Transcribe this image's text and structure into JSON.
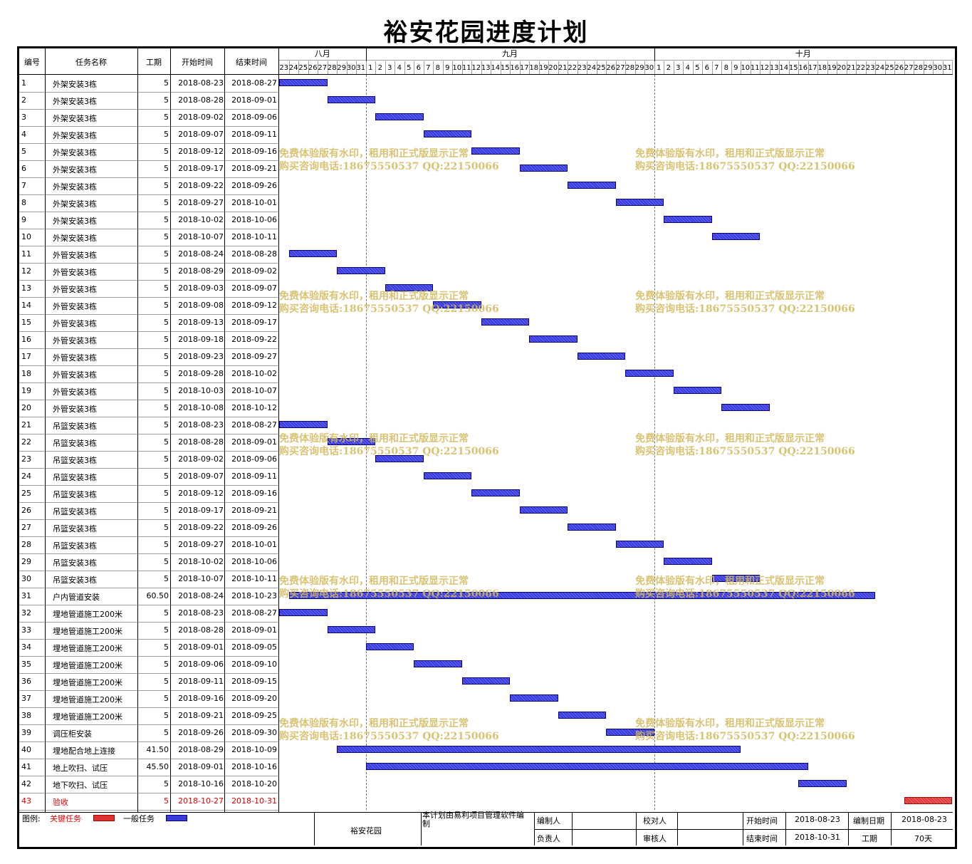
{
  "title": "裕安花园进度计划",
  "columns": {
    "id": "编号",
    "name": "任务名称",
    "duration": "工期",
    "start": "开始时间",
    "end": "结束时间"
  },
  "months": [
    {
      "label": "八月",
      "start_day": 0,
      "days": 9
    },
    {
      "label": "九月",
      "start_day": 9,
      "days": 30
    },
    {
      "label": "十月",
      "start_day": 39,
      "days": 31
    }
  ],
  "day_labels": [
    "23",
    "24",
    "25",
    "26",
    "27",
    "28",
    "29",
    "30",
    "31",
    "1",
    "2",
    "3",
    "4",
    "5",
    "6",
    "7",
    "8",
    "9",
    "10",
    "11",
    "12",
    "13",
    "14",
    "15",
    "16",
    "17",
    "18",
    "19",
    "20",
    "21",
    "22",
    "23",
    "24",
    "25",
    "26",
    "27",
    "28",
    "29",
    "30",
    "1",
    "2",
    "3",
    "4",
    "5",
    "6",
    "7",
    "8",
    "9",
    "10",
    "11",
    "12",
    "13",
    "14",
    "15",
    "16",
    "17",
    "18",
    "19",
    "20",
    "21",
    "22",
    "23",
    "24",
    "25",
    "26",
    "27",
    "28",
    "29",
    "30",
    "31"
  ],
  "chart_data": {
    "type": "gantt",
    "x_range": [
      "2018-08-23",
      "2018-10-31"
    ],
    "tasks": [
      {
        "id": "1",
        "name": "外架安装3栋",
        "duration": "5",
        "start": "2018-08-23",
        "end": "2018-08-27",
        "critical": false
      },
      {
        "id": "2",
        "name": "外架安装3栋",
        "duration": "5",
        "start": "2018-08-28",
        "end": "2018-09-01",
        "critical": false
      },
      {
        "id": "3",
        "name": "外架安装3栋",
        "duration": "5",
        "start": "2018-09-02",
        "end": "2018-09-06",
        "critical": false
      },
      {
        "id": "4",
        "name": "外架安装3栋",
        "duration": "5",
        "start": "2018-09-07",
        "end": "2018-09-11",
        "critical": false
      },
      {
        "id": "5",
        "name": "外架安装3栋",
        "duration": "5",
        "start": "2018-09-12",
        "end": "2018-09-16",
        "critical": false
      },
      {
        "id": "6",
        "name": "外架安装3栋",
        "duration": "5",
        "start": "2018-09-17",
        "end": "2018-09-21",
        "critical": false
      },
      {
        "id": "7",
        "name": "外架安装3栋",
        "duration": "5",
        "start": "2018-09-22",
        "end": "2018-09-26",
        "critical": false
      },
      {
        "id": "8",
        "name": "外架安装3栋",
        "duration": "5",
        "start": "2018-09-27",
        "end": "2018-10-01",
        "critical": false
      },
      {
        "id": "9",
        "name": "外架安装3栋",
        "duration": "5",
        "start": "2018-10-02",
        "end": "2018-10-06",
        "critical": false
      },
      {
        "id": "10",
        "name": "外架安装3栋",
        "duration": "5",
        "start": "2018-10-07",
        "end": "2018-10-11",
        "critical": false
      },
      {
        "id": "11",
        "name": "外管安装3栋",
        "duration": "5",
        "start": "2018-08-24",
        "end": "2018-08-28",
        "critical": false
      },
      {
        "id": "12",
        "name": "外管安装3栋",
        "duration": "5",
        "start": "2018-08-29",
        "end": "2018-09-02",
        "critical": false
      },
      {
        "id": "13",
        "name": "外管安装3栋",
        "duration": "5",
        "start": "2018-09-03",
        "end": "2018-09-07",
        "critical": false
      },
      {
        "id": "14",
        "name": "外管安装3栋",
        "duration": "5",
        "start": "2018-09-08",
        "end": "2018-09-12",
        "critical": false
      },
      {
        "id": "15",
        "name": "外管安装3栋",
        "duration": "5",
        "start": "2018-09-13",
        "end": "2018-09-17",
        "critical": false
      },
      {
        "id": "16",
        "name": "外管安装3栋",
        "duration": "5",
        "start": "2018-09-18",
        "end": "2018-09-22",
        "critical": false
      },
      {
        "id": "17",
        "name": "外管安装3栋",
        "duration": "5",
        "start": "2018-09-23",
        "end": "2018-09-27",
        "critical": false
      },
      {
        "id": "18",
        "name": "外管安装3栋",
        "duration": "5",
        "start": "2018-09-28",
        "end": "2018-10-02",
        "critical": false
      },
      {
        "id": "19",
        "name": "外管安装3栋",
        "duration": "5",
        "start": "2018-10-03",
        "end": "2018-10-07",
        "critical": false
      },
      {
        "id": "20",
        "name": "外管安装3栋",
        "duration": "5",
        "start": "2018-10-08",
        "end": "2018-10-12",
        "critical": false
      },
      {
        "id": "21",
        "name": "吊篮安装3栋",
        "duration": "5",
        "start": "2018-08-23",
        "end": "2018-08-27",
        "critical": false
      },
      {
        "id": "22",
        "name": "吊篮安装3栋",
        "duration": "5",
        "start": "2018-08-28",
        "end": "2018-09-01",
        "critical": false
      },
      {
        "id": "23",
        "name": "吊篮安装3栋",
        "duration": "5",
        "start": "2018-09-02",
        "end": "2018-09-06",
        "critical": false
      },
      {
        "id": "24",
        "name": "吊篮安装3栋",
        "duration": "5",
        "start": "2018-09-07",
        "end": "2018-09-11",
        "critical": false
      },
      {
        "id": "25",
        "name": "吊篮安装3栋",
        "duration": "5",
        "start": "2018-09-12",
        "end": "2018-09-16",
        "critical": false
      },
      {
        "id": "26",
        "name": "吊篮安装3栋",
        "duration": "5",
        "start": "2018-09-17",
        "end": "2018-09-21",
        "critical": false
      },
      {
        "id": "27",
        "name": "吊篮安装3栋",
        "duration": "5",
        "start": "2018-09-22",
        "end": "2018-09-26",
        "critical": false
      },
      {
        "id": "28",
        "name": "吊篮安装3栋",
        "duration": "5",
        "start": "2018-09-27",
        "end": "2018-10-01",
        "critical": false
      },
      {
        "id": "29",
        "name": "吊篮安装3栋",
        "duration": "5",
        "start": "2018-10-02",
        "end": "2018-10-06",
        "critical": false
      },
      {
        "id": "30",
        "name": "吊篮安装3栋",
        "duration": "5",
        "start": "2018-10-07",
        "end": "2018-10-11",
        "critical": false
      },
      {
        "id": "31",
        "name": "户内管道安装",
        "duration": "60.50",
        "start": "2018-08-24",
        "end": "2018-10-23",
        "critical": false
      },
      {
        "id": "32",
        "name": "埋地管道施工200米",
        "duration": "5",
        "start": "2018-08-23",
        "end": "2018-08-27",
        "critical": false
      },
      {
        "id": "33",
        "name": "埋地管道施工200米",
        "duration": "5",
        "start": "2018-08-28",
        "end": "2018-09-01",
        "critical": false
      },
      {
        "id": "34",
        "name": "埋地管道施工200米",
        "duration": "5",
        "start": "2018-09-01",
        "end": "2018-09-05",
        "critical": false
      },
      {
        "id": "35",
        "name": "埋地管道施工200米",
        "duration": "5",
        "start": "2018-09-06",
        "end": "2018-09-10",
        "critical": false
      },
      {
        "id": "36",
        "name": "埋地管道施工200米",
        "duration": "5",
        "start": "2018-09-11",
        "end": "2018-09-15",
        "critical": false
      },
      {
        "id": "37",
        "name": "埋地管道施工200米",
        "duration": "5",
        "start": "2018-09-16",
        "end": "2018-09-20",
        "critical": false
      },
      {
        "id": "38",
        "name": "埋地管道施工200米",
        "duration": "5",
        "start": "2018-09-21",
        "end": "2018-09-25",
        "critical": false
      },
      {
        "id": "39",
        "name": "调压柜安装",
        "duration": "5",
        "start": "2018-09-26",
        "end": "2018-09-30",
        "critical": false
      },
      {
        "id": "40",
        "name": "埋地配合地上连接",
        "duration": "41.50",
        "start": "2018-08-29",
        "end": "2018-10-09",
        "critical": false
      },
      {
        "id": "41",
        "name": "地上吹扫、试压",
        "duration": "45.50",
        "start": "2018-09-01",
        "end": "2018-10-16",
        "critical": false
      },
      {
        "id": "42",
        "name": "地下吹扫、试压",
        "duration": "5",
        "start": "2018-10-16",
        "end": "2018-10-20",
        "critical": false
      },
      {
        "id": "43",
        "name": "验收",
        "duration": "5",
        "start": "2018-10-27",
        "end": "2018-10-31",
        "critical": true
      }
    ]
  },
  "watermark": {
    "line1": "免费体验版有水印，租用和正式版显示正常",
    "line2": "购买咨询电话:18675550537 QQ:22150066"
  },
  "legend": {
    "label": "图例:",
    "critical": "关键任务",
    "normal": "一般任务",
    "critical_color": "#e03030",
    "normal_color": "#3a3ad8"
  },
  "footer": {
    "project": "裕安花园",
    "note": "本计划由易利项目管理软件编制",
    "editor_label": "编制人",
    "editor": "",
    "owner_label": "负责人",
    "owner": "",
    "checker_label": "校对人",
    "checker": "",
    "reviewer_label": "审核人",
    "reviewer": "",
    "start_label": "开始时间",
    "start": "2018-08-23",
    "end_label": "结束时间",
    "end": "2018-10-31",
    "date_label": "编制日期",
    "date": "2018-08-23",
    "duration_label": "工期",
    "duration": "70天"
  }
}
